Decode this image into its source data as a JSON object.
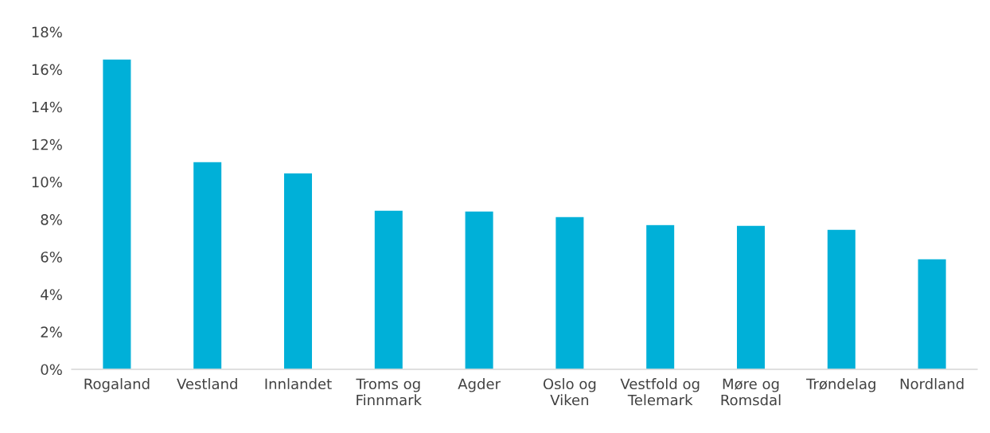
{
  "chart_data": {
    "type": "bar",
    "categories": [
      "Rogaland",
      "Vestland",
      "Innlandet",
      "Troms og\nFinnmark",
      "Agder",
      "Oslo og\nViken",
      "Vestfold og\nTelemark",
      "Møre og\nRomsdal",
      "Trøndelag",
      "Nordland"
    ],
    "values": [
      16.55,
      11.08,
      10.48,
      8.49,
      8.45,
      8.15,
      7.72,
      7.68,
      7.47,
      5.9
    ],
    "color": "#00b0d8",
    "ylim": [
      0,
      18
    ],
    "yticks": [
      {
        "value": 0,
        "label": "0%"
      },
      {
        "value": 2,
        "label": "2%"
      },
      {
        "value": 4,
        "label": "4%"
      },
      {
        "value": 6,
        "label": "6%"
      },
      {
        "value": 8,
        "label": "8%"
      },
      {
        "value": 10,
        "label": "10%"
      },
      {
        "value": 12,
        "label": "12%"
      },
      {
        "value": 14,
        "label": "14%"
      },
      {
        "value": 16,
        "label": "16%"
      },
      {
        "value": 18,
        "label": "18%"
      }
    ],
    "grid": false
  }
}
